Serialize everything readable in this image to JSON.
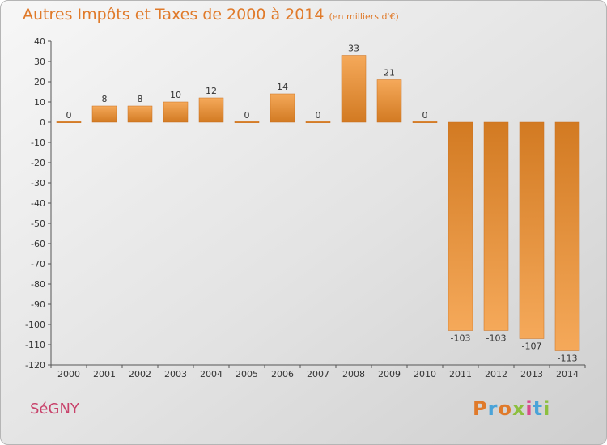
{
  "title": "Autres Impôts et Taxes de 2000 à 2014",
  "subtitle": "(en milliers d'€)",
  "commune": "SéGNY",
  "logo": {
    "letters": [
      "P",
      "r",
      "o",
      "x",
      "i",
      "t",
      "i"
    ],
    "colors": [
      "#e07a2a",
      "#4aa3d8",
      "#e07a2a",
      "#8cbf3f",
      "#d94a8c",
      "#4aa3d8",
      "#8cbf3f"
    ]
  },
  "colors": {
    "bar_top": "#f5a95a",
    "bar_bottom": "#d27a22",
    "title": "#e07a2a",
    "commune": "#c8416a"
  },
  "chart_data": {
    "type": "bar",
    "categories": [
      "2000",
      "2001",
      "2002",
      "2003",
      "2004",
      "2005",
      "2006",
      "2007",
      "2008",
      "2009",
      "2010",
      "2011",
      "2012",
      "2013",
      "2014"
    ],
    "values": [
      0,
      8,
      8,
      10,
      12,
      0,
      14,
      0,
      33,
      21,
      0,
      -103,
      -103,
      -107,
      -113
    ],
    "value_labels": [
      "0",
      "8",
      "8",
      "10",
      "12",
      "0",
      "14",
      "0",
      "33",
      "21",
      "0",
      "-103",
      "-103",
      "-107",
      "-113"
    ],
    "ylim": [
      -120,
      40
    ],
    "yticks": [
      40,
      30,
      20,
      10,
      0,
      -10,
      -20,
      -30,
      -40,
      -50,
      -60,
      -70,
      -80,
      -90,
      -100,
      -110,
      -120
    ],
    "ytick_labels": [
      "40",
      "30",
      "20",
      "10",
      "0",
      "-10",
      "-20",
      "-30",
      "-40",
      "-50",
      "-60",
      "-70",
      "-80",
      "-90",
      "-100",
      "-110",
      "-120"
    ],
    "grid": false
  }
}
